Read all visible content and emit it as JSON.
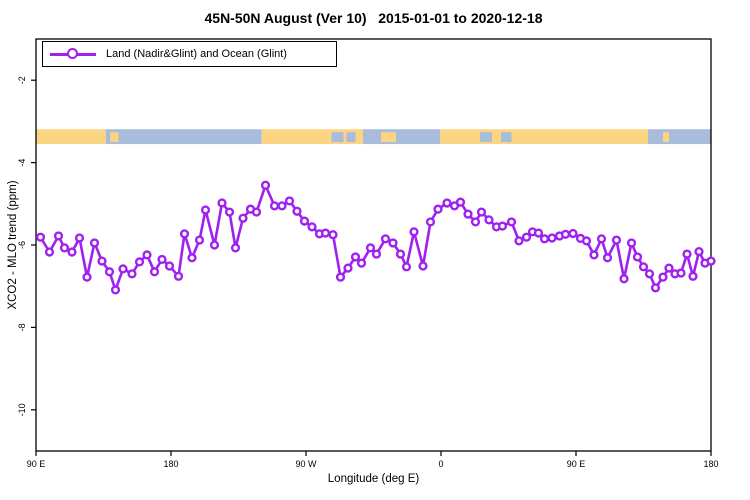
{
  "figure": {
    "title": "45N-50N August (Ver 10)   2015-01-01 to 2020-12-18",
    "legend": {
      "label": "Land (Nadir&Glint) and Ocean (Glint)",
      "position": "top-left"
    },
    "colors": {
      "line": "#A020F0",
      "marker_fill": "#FFFFFF",
      "land": "#FCD582",
      "ocean": "#A9BCDB",
      "axis": "#000000",
      "background": "#FFFFFF"
    }
  },
  "chart_data": {
    "type": "line",
    "title": "45N-50N August (Ver 10)   2015-01-01 to 2020-12-18",
    "xlabel": "Longitude (deg E)",
    "ylabel": "XCO2 - MLO trend (ppm)",
    "xlim": [
      90,
      540
    ],
    "ylim": [
      -11,
      -1
    ],
    "grid": false,
    "legend_position": "top-left",
    "x_ticks": [
      {
        "value": 90,
        "label": "90 E"
      },
      {
        "value": 180,
        "label": "180"
      },
      {
        "value": 270,
        "label": "90 W"
      },
      {
        "value": 360,
        "label": "0"
      },
      {
        "value": 450,
        "label": "90 E"
      },
      {
        "value": 540,
        "label": "180"
      }
    ],
    "y_ticks": [
      {
        "value": -2,
        "label": "-2"
      },
      {
        "value": -4,
        "label": "-4"
      },
      {
        "value": -6,
        "label": "-6"
      },
      {
        "value": -8,
        "label": "-8"
      },
      {
        "value": -10,
        "label": "-10"
      }
    ],
    "series": [
      {
        "name": "Land (Nadir&Glint) and Ocean (Glint)",
        "marker": "open-circle",
        "x": [
          93,
          99,
          105,
          109,
          114,
          119,
          124,
          129,
          134,
          139,
          143,
          148,
          154,
          159,
          164,
          169,
          174,
          179,
          185,
          189,
          194,
          199,
          203,
          209,
          214,
          219,
          223,
          228,
          233,
          237,
          243,
          249,
          254,
          259,
          264,
          269,
          274,
          279,
          283,
          288,
          293,
          298,
          303,
          307,
          313,
          317,
          323,
          328,
          333,
          337,
          342,
          348,
          353,
          358,
          364,
          369,
          373,
          378,
          383,
          387,
          392,
          397,
          401,
          407,
          412,
          417,
          421,
          425,
          429,
          434,
          439,
          443,
          448,
          453,
          457,
          462,
          467,
          471,
          477,
          482,
          487,
          491,
          495,
          499,
          503,
          508,
          512,
          516,
          520,
          524,
          528,
          532,
          536,
          540
        ],
        "y": [
          -5.81,
          -6.17,
          -5.78,
          -6.07,
          -6.17,
          -5.83,
          -6.78,
          -5.95,
          -6.39,
          -6.65,
          -7.09,
          -6.58,
          -6.7,
          -6.41,
          -6.24,
          -6.65,
          -6.35,
          -6.51,
          -6.76,
          -5.73,
          -6.31,
          -5.88,
          -5.15,
          -6.0,
          -4.98,
          -5.2,
          -6.07,
          -5.35,
          -5.13,
          -5.2,
          -4.55,
          -5.05,
          -5.05,
          -4.93,
          -5.18,
          -5.42,
          -5.56,
          -5.73,
          -5.71,
          -5.75,
          -6.78,
          -6.56,
          -6.29,
          -6.44,
          -6.07,
          -6.22,
          -5.85,
          -5.95,
          -6.22,
          -6.53,
          -5.68,
          -6.51,
          -5.44,
          -5.13,
          -4.98,
          -5.05,
          -4.96,
          -5.25,
          -5.44,
          -5.2,
          -5.39,
          -5.56,
          -5.54,
          -5.44,
          -5.9,
          -5.81,
          -5.68,
          -5.71,
          -5.85,
          -5.83,
          -5.78,
          -5.74,
          -5.72,
          -5.84,
          -5.9,
          -6.24,
          -5.85,
          -6.31,
          -5.88,
          -6.82,
          -5.95,
          -6.29,
          -6.53,
          -6.7,
          -7.04,
          -6.78,
          -6.56,
          -6.7,
          -6.68,
          -6.22,
          -6.76,
          -6.16,
          -6.44,
          -6.39
        ]
      }
    ],
    "land_ocean_band": {
      "value_range": [
        -3.55,
        -3.19
      ],
      "segments": [
        {
          "from": 90,
          "to": 136.5,
          "type": "land"
        },
        {
          "from": 136.5,
          "to": 240.5,
          "type": "ocean"
        },
        {
          "from": 240.5,
          "to": 308,
          "type": "land"
        },
        {
          "from": 308,
          "to": 359.5,
          "type": "ocean"
        },
        {
          "from": 359.5,
          "to": 498,
          "type": "land"
        },
        {
          "from": 498,
          "to": 540,
          "type": "ocean"
        }
      ],
      "speckles": [
        {
          "from": 139.5,
          "to": 145,
          "type": "land"
        },
        {
          "from": 287,
          "to": 295,
          "type": "ocean"
        },
        {
          "from": 297,
          "to": 303,
          "type": "ocean"
        },
        {
          "from": 320,
          "to": 330,
          "type": "land"
        },
        {
          "from": 386,
          "to": 394,
          "type": "ocean"
        },
        {
          "from": 400,
          "to": 407,
          "type": "ocean"
        },
        {
          "from": 508,
          "to": 512,
          "type": "land"
        }
      ]
    }
  }
}
